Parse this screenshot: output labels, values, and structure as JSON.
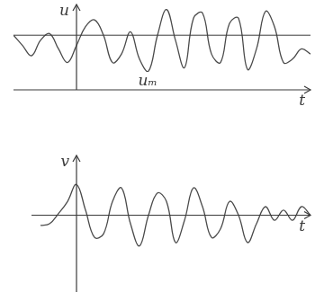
{
  "chart_data": [
    {
      "type": "line",
      "y_label": "u",
      "x_label": "t",
      "color": "#4a4a4a",
      "grid": false,
      "tick_labels": false,
      "x": [
        -3.5,
        -3,
        -2.5,
        -2,
        -1.5,
        -1,
        -0.5,
        0,
        0.5,
        1,
        1.5,
        2,
        2.5,
        3,
        3.5,
        4,
        4.5,
        5,
        5.5,
        6,
        6.5,
        7,
        7.5,
        8,
        8.5,
        9,
        9.5,
        10,
        10.5,
        11,
        11.5,
        12,
        12.5,
        13
      ],
      "values": [
        3.2,
        2.6,
        2.0,
        2.9,
        3.3,
        2.4,
        1.6,
        2.6,
        3.7,
        4.1,
        3.2,
        1.6,
        2.1,
        3.4,
        1.8,
        1.1,
        3.2,
        4.7,
        2.9,
        1.3,
        4.2,
        4.5,
        2.1,
        1.6,
        3.9,
        4.2,
        1.2,
        2.4,
        4.6,
        3.7,
        1.6,
        1.8,
        2.4,
        2.1
      ],
      "mean_line": {
        "value": 3.2,
        "label": "uₘ"
      },
      "xlim": [
        -3.5,
        13
      ],
      "ylim": [
        0,
        5
      ]
    },
    {
      "type": "line",
      "y_label": "v",
      "x_label": "t",
      "color": "#4a4a4a",
      "grid": false,
      "tick_labels": false,
      "x": [
        -2,
        -1.5,
        -1,
        -0.5,
        0,
        0.5,
        1,
        1.5,
        2,
        2.5,
        3,
        3.5,
        4,
        4.5,
        5,
        5.5,
        6,
        6.5,
        7,
        7.5,
        8,
        8.5,
        9,
        9.5,
        10,
        10.5,
        11,
        11.5,
        12,
        12.5,
        13
      ],
      "values": [
        -0.6,
        -0.5,
        0.1,
        0.8,
        1.8,
        0.3,
        -1.3,
        -1.1,
        0.8,
        1.6,
        -0.5,
        -1.8,
        0,
        1.3,
        0.8,
        -1.6,
        -0.3,
        1.6,
        0.5,
        -1.3,
        -0.8,
        0.8,
        0,
        -1.6,
        -0.5,
        0.5,
        -0.3,
        0.3,
        -0.3,
        0.5,
        0
      ],
      "xlim": [
        -2.5,
        13
      ],
      "ylim": [
        -4.5,
        3.5
      ]
    }
  ]
}
